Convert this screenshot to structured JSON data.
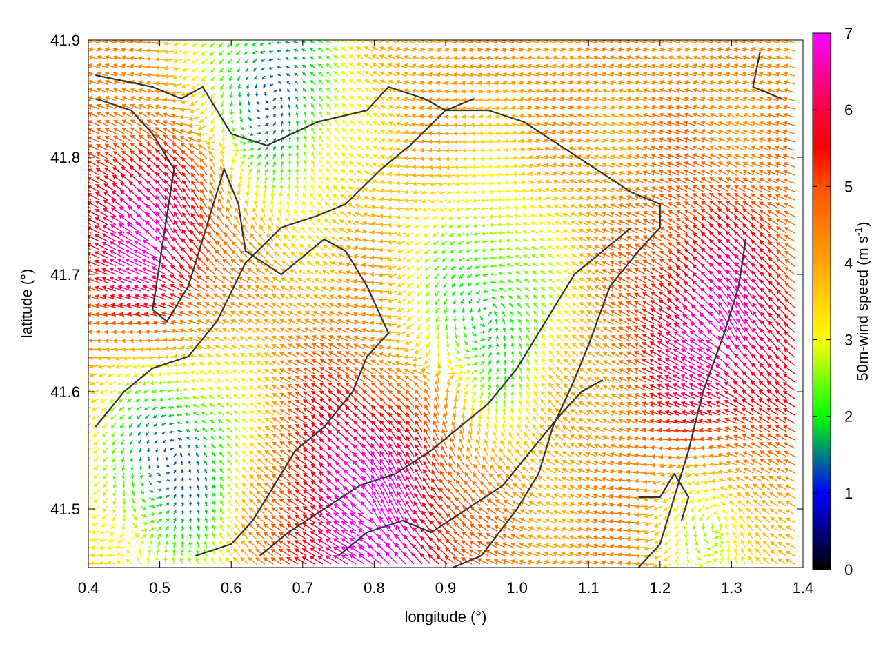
{
  "chart_data": {
    "type": "vector-field",
    "title": "",
    "xlabel": "longitude (°)",
    "ylabel": "latitude (°)",
    "xlim": [
      0.4,
      1.4
    ],
    "ylim": [
      41.45,
      41.9
    ],
    "xticks": [
      "0.4",
      "0.5",
      "0.6",
      "0.7",
      "0.8",
      "0.9",
      "1.0",
      "1.1",
      "1.2",
      "1.3",
      "1.4"
    ],
    "yticks": [
      "41.5",
      "41.6",
      "41.7",
      "41.8",
      "41.9"
    ],
    "colorbar": {
      "label": "50m-wind speed (m s-1)",
      "label_main": "50m-wind speed (m s",
      "label_sup": "-1",
      "label_end": ")",
      "range": [
        0,
        7
      ],
      "ticks": [
        "0",
        "1",
        "2",
        "3",
        "4",
        "5",
        "6",
        "7"
      ],
      "stops": [
        {
          "value": 0,
          "color": "#000000"
        },
        {
          "value": 1,
          "color": "#0000ff"
        },
        {
          "value": 1.5,
          "color": "#008080"
        },
        {
          "value": 2,
          "color": "#00ff00"
        },
        {
          "value": 3,
          "color": "#ffff00"
        },
        {
          "value": 4,
          "color": "#ffa500"
        },
        {
          "value": 5,
          "color": "#ff5000"
        },
        {
          "value": 5.5,
          "color": "#ff0000"
        },
        {
          "value": 6,
          "color": "#ff0040"
        },
        {
          "value": 7,
          "color": "#ff00ff"
        }
      ]
    },
    "field_centers": [
      {
        "x": 0.52,
        "y": 41.55,
        "type": "calm",
        "strength": 3.2,
        "radius": 0.12
      },
      {
        "x": 0.66,
        "y": 41.86,
        "type": "calm",
        "strength": 3.0,
        "radius": 0.12
      },
      {
        "x": 0.96,
        "y": 41.67,
        "type": "calm",
        "strength": 2.6,
        "radius": 0.12
      },
      {
        "x": 1.28,
        "y": 41.49,
        "type": "calm",
        "strength": 2.0,
        "radius": 0.08
      },
      {
        "x": 0.5,
        "y": 41.72,
        "type": "jet",
        "strength": 3.0,
        "radius": 0.1
      },
      {
        "x": 0.8,
        "y": 41.49,
        "type": "jet",
        "strength": 3.0,
        "radius": 0.12
      },
      {
        "x": 1.29,
        "y": 41.64,
        "type": "jet",
        "strength": 2.6,
        "radius": 0.11
      }
    ],
    "background_speed": 4.3,
    "contours": [
      [
        [
          0.41,
          41.87
        ],
        [
          0.49,
          41.86
        ],
        [
          0.53,
          41.85
        ],
        [
          0.56,
          41.86
        ],
        [
          0.6,
          41.82
        ],
        [
          0.65,
          41.81
        ],
        [
          0.72,
          41.83
        ],
        [
          0.79,
          41.84
        ],
        [
          0.82,
          41.86
        ],
        [
          0.87,
          41.85
        ],
        [
          0.9,
          41.84
        ],
        [
          0.96,
          41.84
        ],
        [
          1.01,
          41.83
        ],
        [
          1.06,
          41.81
        ],
        [
          1.11,
          41.79
        ],
        [
          1.16,
          41.77
        ],
        [
          1.2,
          41.76
        ],
        [
          1.2,
          41.74
        ],
        [
          1.17,
          41.72
        ],
        [
          1.13,
          41.69
        ],
        [
          1.1,
          41.64
        ],
        [
          1.08,
          41.61
        ],
        [
          1.05,
          41.57
        ],
        [
          1.03,
          41.53
        ],
        [
          1.0,
          41.5
        ],
        [
          0.95,
          41.46
        ],
        [
          0.91,
          41.45
        ]
      ],
      [
        [
          0.41,
          41.85
        ],
        [
          0.46,
          41.84
        ],
        [
          0.49,
          41.82
        ],
        [
          0.52,
          41.79
        ],
        [
          0.51,
          41.75
        ],
        [
          0.5,
          41.71
        ],
        [
          0.49,
          41.67
        ],
        [
          0.51,
          41.66
        ],
        [
          0.54,
          41.69
        ],
        [
          0.56,
          41.73
        ],
        [
          0.59,
          41.79
        ],
        [
          0.61,
          41.76
        ],
        [
          0.62,
          41.72
        ],
        [
          0.67,
          41.7
        ],
        [
          0.73,
          41.73
        ],
        [
          0.76,
          41.72
        ],
        [
          0.79,
          41.69
        ],
        [
          0.82,
          41.65
        ],
        [
          0.79,
          41.63
        ],
        [
          0.77,
          41.6
        ],
        [
          0.73,
          41.57
        ],
        [
          0.69,
          41.55
        ],
        [
          0.66,
          41.52
        ],
        [
          0.63,
          41.49
        ],
        [
          0.6,
          41.47
        ],
        [
          0.55,
          41.46
        ]
      ],
      [
        [
          0.41,
          41.57
        ],
        [
          0.45,
          41.6
        ],
        [
          0.49,
          41.62
        ],
        [
          0.54,
          41.63
        ],
        [
          0.58,
          41.66
        ],
        [
          0.62,
          41.71
        ],
        [
          0.67,
          41.74
        ],
        [
          0.72,
          41.75
        ],
        [
          0.76,
          41.76
        ],
        [
          0.81,
          41.79
        ],
        [
          0.85,
          41.81
        ],
        [
          0.9,
          41.84
        ],
        [
          0.94,
          41.85
        ]
      ],
      [
        [
          0.64,
          41.46
        ],
        [
          0.68,
          41.48
        ],
        [
          0.73,
          41.5
        ],
        [
          0.78,
          41.52
        ],
        [
          0.83,
          41.53
        ],
        [
          0.88,
          41.55
        ],
        [
          0.92,
          41.57
        ],
        [
          0.96,
          41.59
        ],
        [
          1.0,
          41.62
        ],
        [
          1.04,
          41.66
        ],
        [
          1.08,
          41.7
        ],
        [
          1.12,
          41.72
        ],
        [
          1.16,
          41.74
        ]
      ],
      [
        [
          0.75,
          41.46
        ],
        [
          0.79,
          41.48
        ],
        [
          0.84,
          41.49
        ],
        [
          0.88,
          41.48
        ],
        [
          0.93,
          41.5
        ],
        [
          0.98,
          41.52
        ],
        [
          1.02,
          41.55
        ],
        [
          1.06,
          41.58
        ],
        [
          1.09,
          41.6
        ],
        [
          1.12,
          41.61
        ]
      ],
      [
        [
          1.34,
          41.89
        ],
        [
          1.33,
          41.86
        ],
        [
          1.37,
          41.85
        ]
      ],
      [
        [
          1.32,
          41.73
        ],
        [
          1.31,
          41.69
        ],
        [
          1.29,
          41.65
        ],
        [
          1.26,
          41.6
        ],
        [
          1.24,
          41.55
        ],
        [
          1.22,
          41.51
        ],
        [
          1.2,
          41.47
        ],
        [
          1.17,
          41.45
        ]
      ],
      [
        [
          1.17,
          41.51
        ],
        [
          1.2,
          41.51
        ],
        [
          1.22,
          41.53
        ],
        [
          1.24,
          41.51
        ],
        [
          1.23,
          41.49
        ]
      ]
    ]
  }
}
